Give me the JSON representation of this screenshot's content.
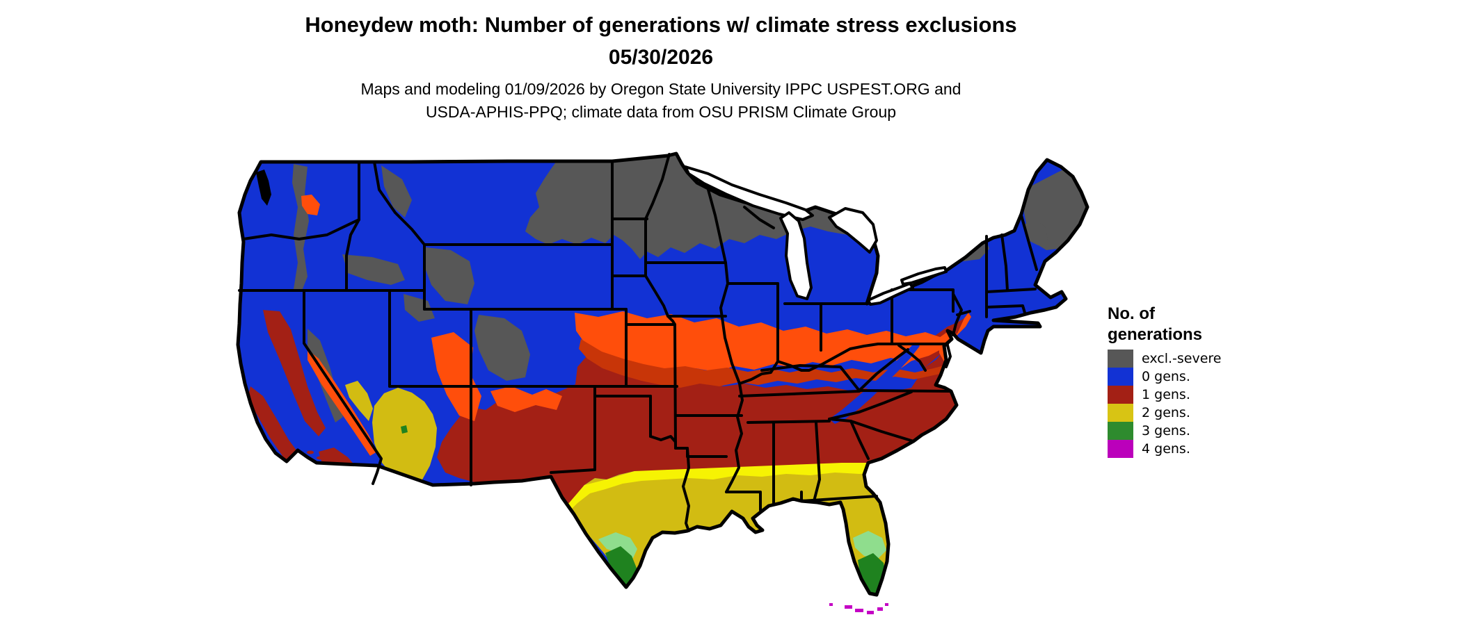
{
  "title": {
    "line1": "Honeydew moth: Number of generations w/ climate stress exclusions",
    "line2": "05/30/2026"
  },
  "subtitle": {
    "line1": "Maps and modeling 01/09/2026 by Oregon State University IPPC USPEST.ORG and",
    "line2": "USDA-APHIS-PPQ; climate data from OSU PRISM Climate Group"
  },
  "legend": {
    "title_line1": "No. of",
    "title_line2": "generations",
    "items": [
      {
        "label": "excl.-severe",
        "color": "#575757"
      },
      {
        "label": "0 gens.",
        "color": "#1232D4"
      },
      {
        "label": "1 gens.",
        "color": "#A32015"
      },
      {
        "label": "2 gens.",
        "color": "#D8C414"
      },
      {
        "label": "3 gens.",
        "color": "#2E8B2E"
      },
      {
        "label": "4 gens.",
        "color": "#BB00BB"
      }
    ]
  },
  "map": {
    "description": "Contiguous United States raster map of honeydew moth generations, 05/30/2026",
    "colors": {
      "water": "#FFFFFF",
      "border": "#000000",
      "excl_severe": "#575757",
      "gens0": "#1232D4",
      "gens1": "#A32015",
      "gens1_edge_orange": "#FF4E0B",
      "gens1_mid_orange": "#C83508",
      "gens2": "#D2BC12",
      "gens2_edge_yellow": "#F6F303",
      "gens3": "#1F821F",
      "gens3_edge_light": "#8FDD8D",
      "gens4": "#C400C4"
    }
  }
}
